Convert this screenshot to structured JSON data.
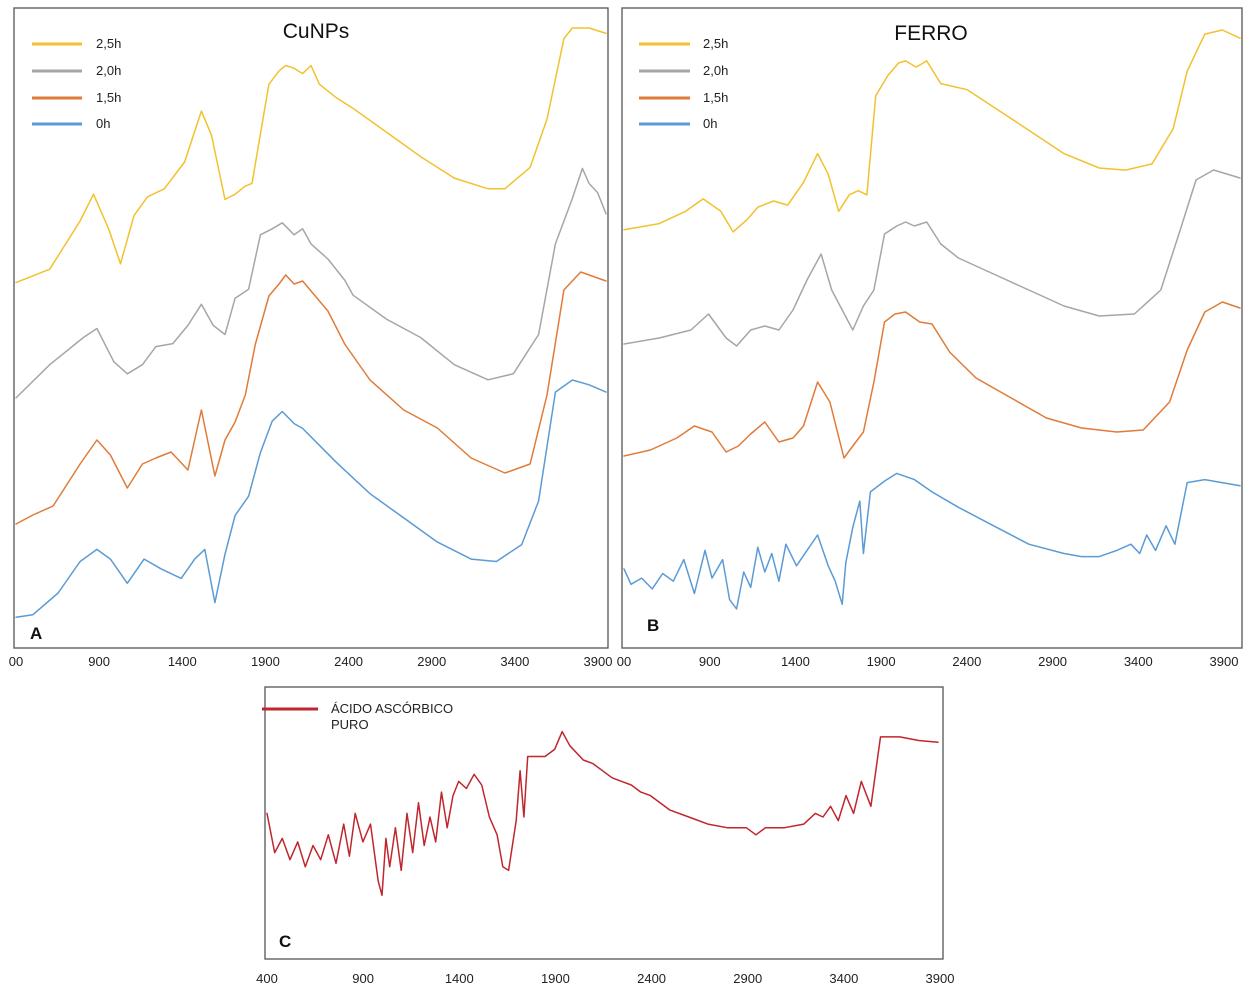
{
  "chart_data": [
    {
      "type": "line",
      "panel_label": "A",
      "title": "CuNPs",
      "xlim": [
        400,
        3900
      ],
      "x_ticks": [
        "00",
        "900",
        "1400",
        "1900",
        "2400",
        "2900",
        "3400",
        "3900"
      ],
      "legend_position": "top-left",
      "series": [
        {
          "name": "2,5h",
          "color": "#F2C12E",
          "x": [
            400,
            600,
            780,
            860,
            950,
            1020,
            1100,
            1180,
            1280,
            1400,
            1500,
            1560,
            1640,
            1700,
            1760,
            1800,
            1900,
            1960,
            2000,
            2050,
            2100,
            2150,
            2200,
            2300,
            2400,
            2600,
            2800,
            3000,
            3200,
            3300,
            3450,
            3550,
            3650,
            3700,
            3800,
            3900
          ],
          "y": [
            0.05,
            0.1,
            0.28,
            0.38,
            0.25,
            0.12,
            0.3,
            0.37,
            0.4,
            0.5,
            0.69,
            0.6,
            0.36,
            0.38,
            0.41,
            0.42,
            0.79,
            0.84,
            0.86,
            0.85,
            0.83,
            0.86,
            0.79,
            0.74,
            0.7,
            0.61,
            0.52,
            0.44,
            0.4,
            0.4,
            0.48,
            0.66,
            0.96,
            1.0,
            1.0,
            0.98
          ]
        },
        {
          "name": "2,0h",
          "color": "#A6A6A6",
          "x": [
            400,
            600,
            800,
            880,
            980,
            1060,
            1150,
            1230,
            1330,
            1420,
            1500,
            1570,
            1640,
            1700,
            1780,
            1850,
            1920,
            1980,
            2050,
            2100,
            2150,
            2250,
            2350,
            2400,
            2600,
            2800,
            3000,
            3200,
            3350,
            3500,
            3600,
            3700,
            3760,
            3800,
            3850,
            3900
          ],
          "y": [
            0.04,
            0.15,
            0.24,
            0.27,
            0.16,
            0.12,
            0.15,
            0.21,
            0.22,
            0.28,
            0.35,
            0.28,
            0.25,
            0.37,
            0.4,
            0.58,
            0.6,
            0.62,
            0.58,
            0.6,
            0.55,
            0.5,
            0.43,
            0.38,
            0.3,
            0.24,
            0.15,
            0.1,
            0.12,
            0.25,
            0.55,
            0.7,
            0.8,
            0.75,
            0.72,
            0.65
          ]
        },
        {
          "name": "1,5h",
          "color": "#E07B39",
          "x": [
            400,
            500,
            620,
            780,
            880,
            960,
            1060,
            1150,
            1230,
            1320,
            1420,
            1500,
            1580,
            1640,
            1700,
            1760,
            1820,
            1900,
            1960,
            2000,
            2050,
            2100,
            2160,
            2250,
            2350,
            2400,
            2500,
            2700,
            2900,
            3100,
            3300,
            3450,
            3550,
            3650,
            3750,
            3900
          ],
          "y": [
            0.02,
            0.05,
            0.08,
            0.22,
            0.3,
            0.25,
            0.14,
            0.22,
            0.24,
            0.26,
            0.2,
            0.4,
            0.18,
            0.3,
            0.36,
            0.45,
            0.62,
            0.78,
            0.82,
            0.85,
            0.82,
            0.83,
            0.79,
            0.73,
            0.62,
            0.58,
            0.5,
            0.4,
            0.34,
            0.24,
            0.19,
            0.22,
            0.45,
            0.8,
            0.86,
            0.83
          ]
        },
        {
          "name": "0h",
          "color": "#5B9BD5",
          "x": [
            400,
            500,
            650,
            780,
            880,
            960,
            1060,
            1160,
            1260,
            1380,
            1460,
            1520,
            1580,
            1640,
            1700,
            1780,
            1850,
            1920,
            1980,
            2050,
            2100,
            2200,
            2300,
            2500,
            2700,
            2900,
            3100,
            3250,
            3400,
            3500,
            3600,
            3700,
            3800,
            3900
          ],
          "y": [
            0.02,
            0.03,
            0.12,
            0.25,
            0.3,
            0.26,
            0.16,
            0.26,
            0.22,
            0.18,
            0.26,
            0.3,
            0.08,
            0.28,
            0.44,
            0.52,
            0.7,
            0.83,
            0.87,
            0.82,
            0.8,
            0.73,
            0.66,
            0.53,
            0.43,
            0.33,
            0.26,
            0.25,
            0.32,
            0.5,
            0.95,
            1.0,
            0.98,
            0.95
          ]
        }
      ]
    },
    {
      "type": "line",
      "panel_label": "B",
      "title": "FERRO",
      "xlim": [
        400,
        3900
      ],
      "x_ticks": [
        "00",
        "900",
        "1400",
        "1900",
        "2400",
        "2900",
        "3400",
        "3900"
      ],
      "legend_position": "top-left",
      "series": [
        {
          "name": "2,5h",
          "color": "#F2C12E",
          "x": [
            400,
            600,
            750,
            850,
            950,
            1020,
            1100,
            1160,
            1250,
            1330,
            1420,
            1500,
            1560,
            1620,
            1680,
            1730,
            1780,
            1830,
            1900,
            1960,
            2000,
            2060,
            2120,
            2200,
            2350,
            2600,
            2900,
            3100,
            3250,
            3400,
            3520,
            3600,
            3700,
            3800,
            3900
          ],
          "y": [
            0.03,
            0.06,
            0.12,
            0.18,
            0.12,
            0.02,
            0.08,
            0.14,
            0.17,
            0.15,
            0.26,
            0.4,
            0.3,
            0.12,
            0.2,
            0.22,
            0.2,
            0.68,
            0.78,
            0.84,
            0.85,
            0.82,
            0.85,
            0.74,
            0.71,
            0.57,
            0.4,
            0.33,
            0.32,
            0.35,
            0.52,
            0.8,
            0.98,
            1.0,
            0.96
          ]
        },
        {
          "name": "2,0h",
          "color": "#A6A6A6",
          "x": [
            400,
            600,
            780,
            880,
            980,
            1040,
            1120,
            1200,
            1280,
            1360,
            1440,
            1520,
            1580,
            1640,
            1700,
            1760,
            1820,
            1880,
            1950,
            2000,
            2050,
            2120,
            2200,
            2300,
            2500,
            2700,
            2900,
            3100,
            3300,
            3450,
            3560,
            3650,
            3750,
            3900
          ],
          "y": [
            0.03,
            0.06,
            0.1,
            0.18,
            0.06,
            0.02,
            0.1,
            0.12,
            0.1,
            0.2,
            0.35,
            0.48,
            0.3,
            0.2,
            0.1,
            0.22,
            0.3,
            0.58,
            0.62,
            0.64,
            0.62,
            0.64,
            0.53,
            0.46,
            0.38,
            0.3,
            0.22,
            0.17,
            0.18,
            0.3,
            0.6,
            0.85,
            0.9,
            0.86
          ]
        },
        {
          "name": "1,5h",
          "color": "#E07B39",
          "x": [
            400,
            550,
            700,
            800,
            900,
            980,
            1050,
            1120,
            1200,
            1280,
            1360,
            1420,
            1500,
            1570,
            1650,
            1700,
            1760,
            1820,
            1880,
            1940,
            2000,
            2080,
            2150,
            2250,
            2400,
            2600,
            2800,
            3000,
            3200,
            3350,
            3500,
            3600,
            3700,
            3800,
            3900
          ],
          "y": [
            0.03,
            0.06,
            0.12,
            0.18,
            0.15,
            0.05,
            0.08,
            0.14,
            0.2,
            0.1,
            0.12,
            0.18,
            0.4,
            0.3,
            0.02,
            0.08,
            0.15,
            0.4,
            0.7,
            0.74,
            0.75,
            0.7,
            0.69,
            0.55,
            0.42,
            0.32,
            0.22,
            0.17,
            0.15,
            0.16,
            0.3,
            0.56,
            0.75,
            0.8,
            0.77
          ]
        },
        {
          "name": "0h",
          "color": "#5B9BD5",
          "x": [
            400,
            440,
            500,
            560,
            620,
            680,
            740,
            800,
            860,
            900,
            960,
            1000,
            1040,
            1080,
            1120,
            1160,
            1200,
            1240,
            1280,
            1320,
            1380,
            1440,
            1500,
            1560,
            1600,
            1640,
            1660,
            1700,
            1740,
            1760,
            1800,
            1880,
            1950,
            2050,
            2150,
            2300,
            2500,
            2700,
            2900,
            3000,
            3100,
            3200,
            3280,
            3330,
            3370,
            3420,
            3480,
            3530,
            3600,
            3700,
            3900
          ],
          "y": [
            0.28,
            0.18,
            0.22,
            0.15,
            0.25,
            0.2,
            0.34,
            0.12,
            0.4,
            0.22,
            0.34,
            0.08,
            0.02,
            0.26,
            0.16,
            0.42,
            0.26,
            0.38,
            0.2,
            0.44,
            0.3,
            0.4,
            0.5,
            0.3,
            0.2,
            0.05,
            0.32,
            0.55,
            0.72,
            0.38,
            0.78,
            0.85,
            0.9,
            0.86,
            0.78,
            0.68,
            0.56,
            0.44,
            0.38,
            0.36,
            0.36,
            0.4,
            0.44,
            0.38,
            0.5,
            0.4,
            0.56,
            0.44,
            0.84,
            0.86,
            0.82
          ]
        }
      ]
    },
    {
      "type": "line",
      "panel_label": "C",
      "xlim": [
        400,
        3900
      ],
      "x_ticks": [
        "400",
        "900",
        "1400",
        "1900",
        "2400",
        "2900",
        "3400",
        "3900"
      ],
      "legend_position": "top-left",
      "series": [
        {
          "name": "ÁCIDO ASCÓRBICO PURO",
          "color": "#C0262D",
          "x": [
            400,
            440,
            480,
            520,
            560,
            600,
            640,
            680,
            720,
            760,
            800,
            830,
            860,
            900,
            940,
            980,
            1000,
            1020,
            1040,
            1070,
            1100,
            1130,
            1160,
            1190,
            1220,
            1250,
            1280,
            1310,
            1340,
            1370,
            1400,
            1440,
            1480,
            1520,
            1560,
            1600,
            1630,
            1660,
            1700,
            1720,
            1740,
            1760,
            1800,
            1850,
            1900,
            1940,
            1980,
            2050,
            2100,
            2150,
            2200,
            2250,
            2300,
            2350,
            2400,
            2500,
            2600,
            2700,
            2800,
            2900,
            2950,
            3000,
            3100,
            3200,
            3260,
            3300,
            3340,
            3380,
            3420,
            3460,
            3500,
            3550,
            3600,
            3700,
            3800,
            3900
          ],
          "y": [
            0.52,
            0.3,
            0.38,
            0.26,
            0.36,
            0.22,
            0.34,
            0.26,
            0.4,
            0.24,
            0.46,
            0.28,
            0.52,
            0.36,
            0.46,
            0.14,
            0.06,
            0.38,
            0.22,
            0.44,
            0.2,
            0.52,
            0.3,
            0.58,
            0.34,
            0.5,
            0.36,
            0.64,
            0.44,
            0.62,
            0.7,
            0.66,
            0.74,
            0.68,
            0.5,
            0.4,
            0.22,
            0.2,
            0.48,
            0.76,
            0.5,
            0.84,
            0.84,
            0.84,
            0.88,
            0.98,
            0.9,
            0.82,
            0.8,
            0.76,
            0.72,
            0.7,
            0.68,
            0.64,
            0.62,
            0.54,
            0.5,
            0.46,
            0.44,
            0.44,
            0.4,
            0.44,
            0.44,
            0.46,
            0.52,
            0.5,
            0.56,
            0.48,
            0.62,
            0.52,
            0.7,
            0.56,
            0.95,
            0.95,
            0.93,
            0.92
          ]
        }
      ]
    }
  ]
}
